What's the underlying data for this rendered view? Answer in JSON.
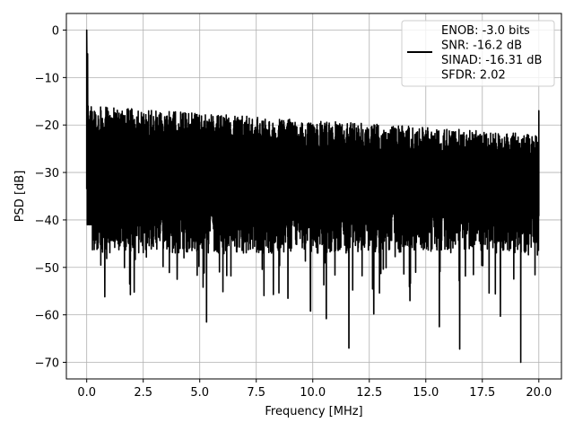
{
  "chart_data": {
    "type": "line",
    "xlabel": "Frequency [MHz]",
    "ylabel": "PSD [dB]",
    "xlim": [
      -0.9,
      21.0
    ],
    "ylim": [
      -73.5,
      3.5
    ],
    "xticks": [
      0.0,
      2.5,
      5.0,
      7.5,
      10.0,
      12.5,
      15.0,
      17.5,
      20.0
    ],
    "xtick_labels": [
      "0.0",
      "2.5",
      "5.0",
      "7.5",
      "10.0",
      "12.5",
      "15.0",
      "17.5",
      "20.0"
    ],
    "yticks": [
      0,
      -10,
      -20,
      -30,
      -40,
      -50,
      -60,
      -70
    ],
    "ytick_labels": [
      "0",
      "−10",
      "−20",
      "−30",
      "−40",
      "−50",
      "−60",
      "−70"
    ],
    "grid": true,
    "legend_position": "top-right",
    "series": [
      {
        "color": "#000000",
        "x_range": [
          0.0,
          20.0
        ],
        "peak": {
          "x": 0.0,
          "y": 0.0
        },
        "noise_ceiling_start": -15,
        "noise_ceiling_end": -21,
        "noise_floor_typical": -43,
        "deep_dips": [
          {
            "x": 5.3,
            "y": -61.5
          },
          {
            "x": 11.6,
            "y": -67.0
          },
          {
            "x": 16.5,
            "y": -67.2
          },
          {
            "x": 19.2,
            "y": -70.0
          },
          {
            "x": 15.6,
            "y": -62.5
          },
          {
            "x": 12.7,
            "y": -59.8
          },
          {
            "x": 10.6,
            "y": -60.8
          },
          {
            "x": 9.9,
            "y": -59.2
          },
          {
            "x": 0.8,
            "y": -56.2
          },
          {
            "x": 1.9,
            "y": -53.5
          },
          {
            "x": 4.0,
            "y": -52.5
          },
          {
            "x": 8.9,
            "y": -56.5
          },
          {
            "x": 14.3,
            "y": -57.0
          },
          {
            "x": 18.3,
            "y": -60.3
          },
          {
            "x": 17.8,
            "y": -55.4
          }
        ]
      }
    ],
    "legend": [
      "ENOB: -3.0 bits",
      "SNR: -16.2 dB",
      "SINAD: -16.31 dB",
      "SFDR: 2.02"
    ]
  }
}
